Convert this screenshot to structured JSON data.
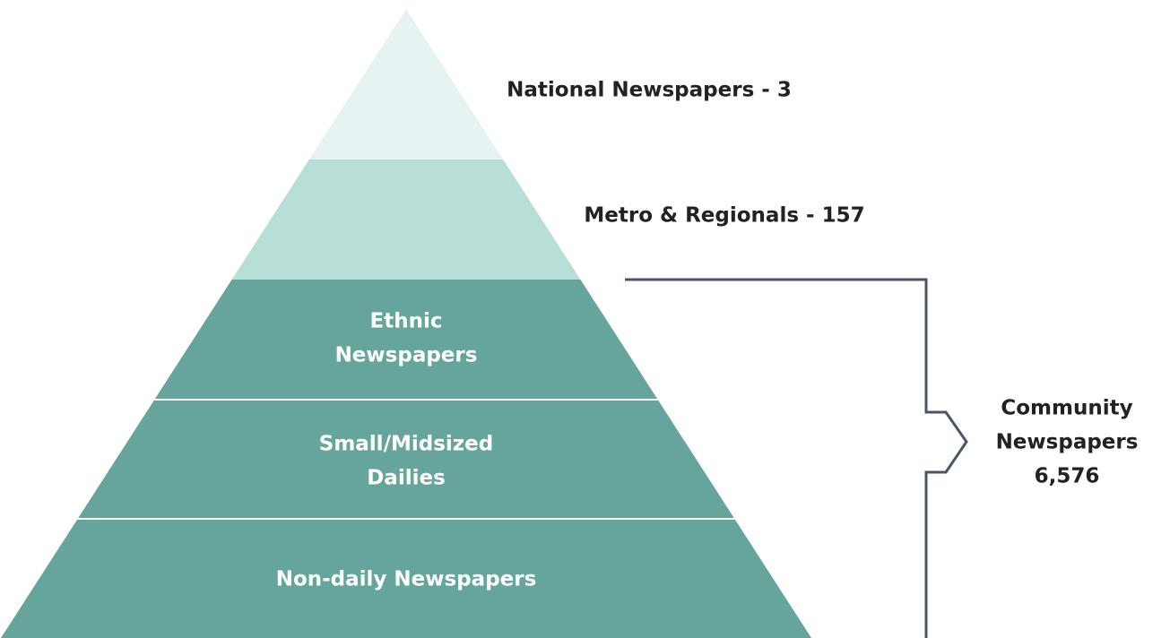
{
  "pyramid": {
    "levels": [
      {
        "label": [
          "National Newspapers - 3"
        ]
      },
      {
        "label": [
          "Metro & Regionals - 157"
        ]
      },
      {
        "label": [
          "Ethnic",
          "Newspapers"
        ]
      },
      {
        "label": [
          "Small/Midsized",
          "Dailies"
        ]
      },
      {
        "label": [
          "Non-daily Newspapers"
        ]
      }
    ],
    "bracket": {
      "label": [
        "Community",
        "Newspapers",
        "6,576"
      ]
    }
  }
}
